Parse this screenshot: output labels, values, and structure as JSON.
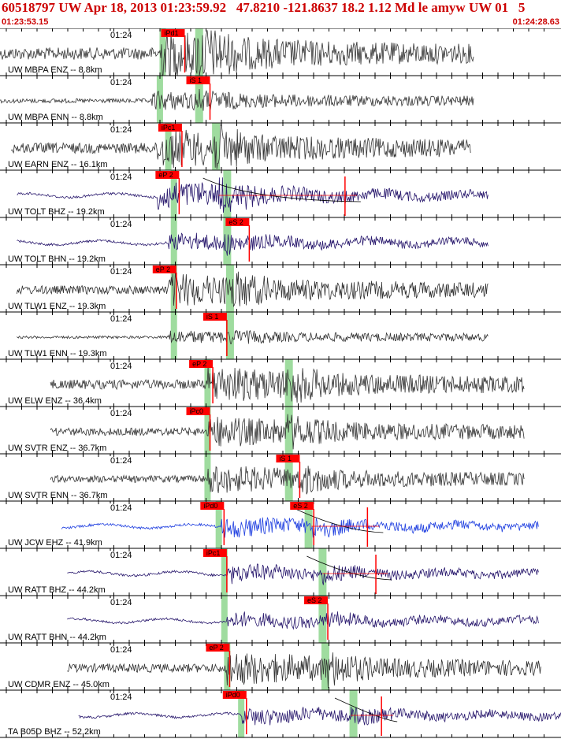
{
  "header": {
    "title": "60518797 UW Apr 18, 2013 01:23:59.92   47.8210 -121.8637 18.2 1.12 Md le amyw UW 01   5",
    "start_time": "01:23:53.15",
    "end_time": "01:24:28.63"
  },
  "time_tick_label": "01:24",
  "colors": {
    "trace_black": "#333333",
    "trace_navy": "#2a1a6e",
    "trace_blue": "#1f3fe0",
    "pick_red": "#ff0000",
    "window_green": "#9fdc9f"
  },
  "traces": [
    {
      "label": "UW MBPA ENZ -- 8.8km",
      "color": "black",
      "pick": "iPd1",
      "pick_pos": 0.29,
      "green": [
        0.29,
        0.355
      ],
      "start": 0.0,
      "end": 0.845,
      "onset": 0.285,
      "amp": 14,
      "s_onset": 0.35,
      "tail": null
    },
    {
      "label": "UW MBPA ENN -- 8.8km",
      "color": "black",
      "pick": "iS 1",
      "pick_pos": 0.335,
      "green": [
        0.285,
        0.355
      ],
      "start": 0.0,
      "end": 0.845,
      "onset": 0.27,
      "amp": 5,
      "s_onset": 0.345,
      "tail": null
    },
    {
      "label": "UW EARN ENZ -- 16.1km",
      "color": "black",
      "pick": "iPc1",
      "pick_pos": 0.285,
      "green": [
        0.3,
        0.385
      ],
      "start": 0.02,
      "end": 0.84,
      "onset": 0.28,
      "amp": 12,
      "s_onset": 0.38,
      "tail": null
    },
    {
      "label": "UW TOLT BHZ -- 19.2km",
      "color": "navy",
      "pick": "eP 2",
      "pick_pos": 0.28,
      "green": [
        0.31,
        0.405
      ],
      "start": 0.03,
      "end": 0.87,
      "onset": 0.28,
      "amp": 10,
      "s_onset": 0.39,
      "tail": 0.615
    },
    {
      "label": "UW TOLT BHN -- 19.2km",
      "color": "navy",
      "pick": "eS 2",
      "pick_pos": 0.405,
      "green": [
        0.31,
        0.405
      ],
      "start": 0.03,
      "end": 0.87,
      "onset": 0.3,
      "amp": 5,
      "s_onset": 0.4,
      "tail": null
    },
    {
      "label": "UW TLW1 ENZ -- 19.3km",
      "color": "black",
      "pick": "eP 2",
      "pick_pos": 0.275,
      "green": [
        0.31,
        0.41
      ],
      "start": 0.03,
      "end": 0.87,
      "onset": 0.3,
      "amp": 10,
      "s_onset": 0.405,
      "tail": null
    },
    {
      "label": "UW TLW1 ENN -- 19.3km",
      "color": "black",
      "pick": "iS 1",
      "pick_pos": 0.365,
      "green": [
        0.31,
        0.41
      ],
      "start": 0.03,
      "end": 0.87,
      "onset": 0.3,
      "amp": 3,
      "s_onset": 0.405,
      "tail": null
    },
    {
      "label": "UW ELW ENZ -- 36.4km",
      "color": "black",
      "pick": "eP 2",
      "pick_pos": 0.34,
      "green": [
        0.37,
        0.515
      ],
      "start": 0.09,
      "end": 0.935,
      "onset": 0.37,
      "amp": 11,
      "s_onset": 0.51,
      "tail": null
    },
    {
      "label": "UW SVTR ENZ -- 36.7km",
      "color": "black",
      "pick": "iPc0",
      "pick_pos": 0.335,
      "green": [
        0.37,
        0.515
      ],
      "start": 0.09,
      "end": 0.935,
      "onset": 0.37,
      "amp": 9,
      "s_onset": 0.51,
      "tail": null
    },
    {
      "label": "UW SVTR ENN -- 36.7km",
      "color": "black",
      "pick": "iS 1",
      "pick_pos": 0.495,
      "green": [
        0.37,
        0.515
      ],
      "start": 0.09,
      "end": 0.935,
      "onset": 0.37,
      "amp": 8,
      "s_onset": 0.535,
      "tail": null
    },
    {
      "label": "UW JCW EHZ -- 41.9km",
      "color": "blue",
      "pick": "iPd0",
      "pick_pos": 0.36,
      "green": [
        0.39,
        0.55
      ],
      "start": 0.11,
      "end": 0.96,
      "onset": 0.395,
      "amp": 6,
      "s_onset": 0.555,
      "tail": 0.655,
      "pick2": "eS 2",
      "pick2_pos": 0.52
    },
    {
      "label": "UW RATT BHZ -- 44.2km",
      "color": "navy",
      "pick": "iPc1",
      "pick_pos": 0.365,
      "green": [
        0.4,
        0.575
      ],
      "start": 0.12,
      "end": 0.96,
      "onset": 0.405,
      "amp": 5,
      "s_onset": 0.575,
      "tail": 0.67
    },
    {
      "label": "UW RATT BHN -- 44.2km",
      "color": "navy",
      "pick": "eS 2",
      "pick_pos": 0.545,
      "green": [
        0.4,
        0.575
      ],
      "start": 0.12,
      "end": 0.96,
      "onset": 0.405,
      "amp": 4,
      "s_onset": 0.58,
      "tail": null
    },
    {
      "label": "UW CDMR ENZ -- 45.0km",
      "color": "black",
      "pick": "eP 2",
      "pick_pos": 0.37,
      "green": [
        0.405,
        0.58
      ],
      "start": 0.12,
      "end": 0.965,
      "onset": 0.405,
      "amp": 10,
      "s_onset": 0.58,
      "tail": null
    },
    {
      "label": "TA B05D BHZ -- 52.2km",
      "color": "navy",
      "pick": "iPd0",
      "pick_pos": 0.4,
      "green": [
        0.43,
        0.63
      ],
      "start": 0.14,
      "end": 1.0,
      "onset": 0.43,
      "amp": 5,
      "s_onset": 0.625,
      "tail": 0.68
    }
  ]
}
